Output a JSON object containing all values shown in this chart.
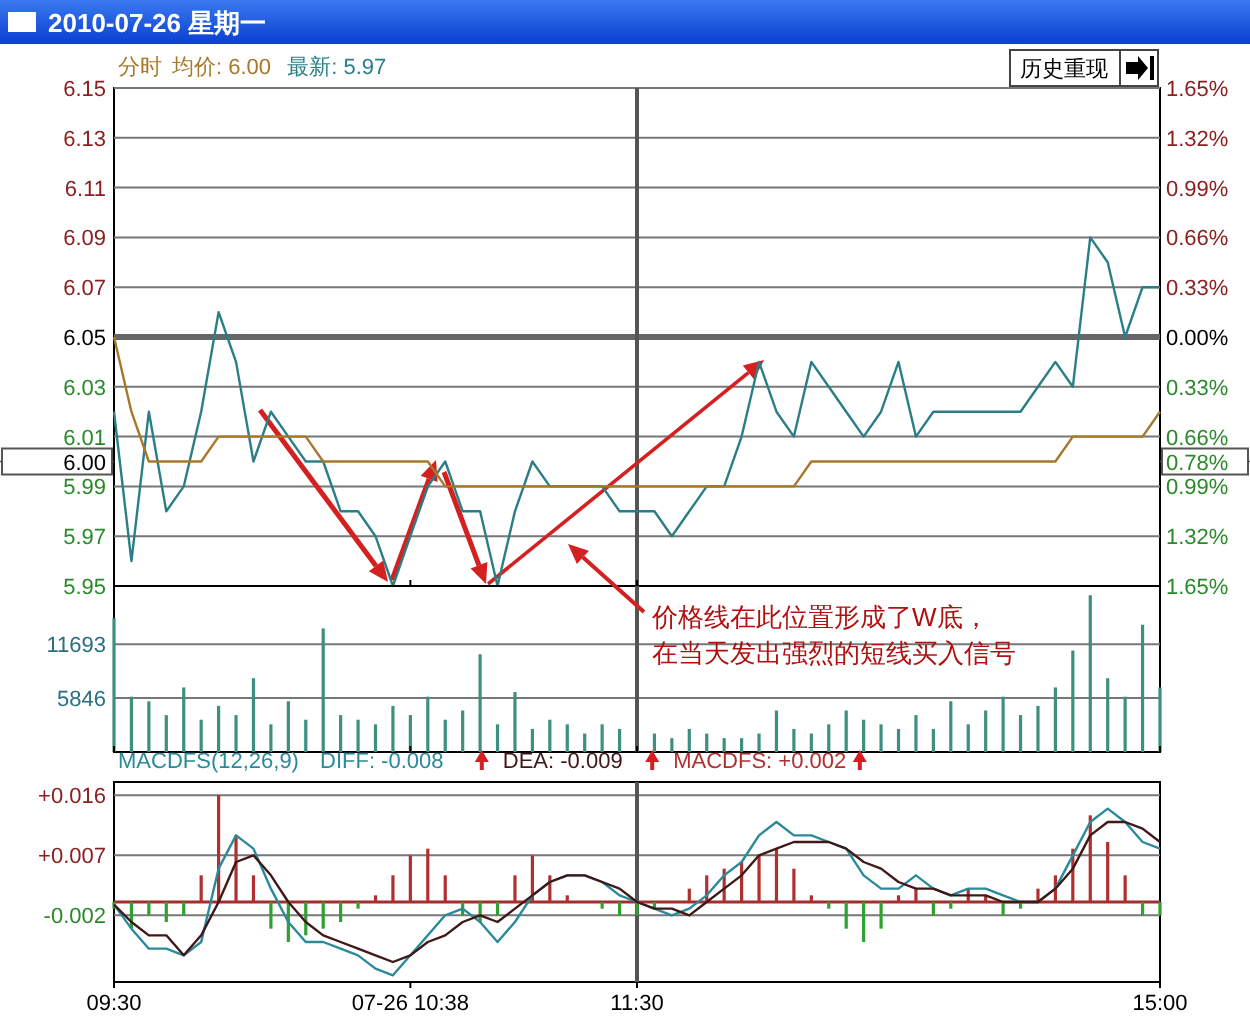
{
  "chart_data": [
    {
      "type": "line",
      "title": "2010-07-26 星期一",
      "subtitle": "分时",
      "legend": "top left",
      "grid": "y",
      "tick_labels": "y",
      "categories": [
        "09:30",
        null,
        null,
        null,
        null,
        null,
        null,
        null,
        null,
        null,
        null,
        null,
        null,
        null,
        null,
        null,
        null,
        "07-26 10:38",
        null,
        null,
        null,
        null,
        null,
        null,
        null,
        null,
        null,
        null,
        null,
        null,
        "11:30",
        null,
        null,
        null,
        null,
        null,
        null,
        null,
        null,
        null,
        null,
        null,
        null,
        null,
        null,
        null,
        null,
        null,
        null,
        null,
        null,
        null,
        null,
        null,
        null,
        null,
        null,
        null,
        null,
        null,
        "15:00"
      ],
      "ylim": [
        5.95,
        6.15
      ],
      "yticks": [
        6.15,
        6.13,
        6.11,
        6.09,
        6.07,
        6.05,
        6.03,
        6.01,
        5.99,
        5.97,
        5.95
      ],
      "y2lim": [
        -1.65,
        1.65
      ],
      "y2ticks": [
        {
          "value": 1.65,
          "label": "1.65%"
        },
        {
          "value": 1.32,
          "label": "1.32%"
        },
        {
          "value": 0.99,
          "label": "0.99%"
        },
        {
          "value": 0.66,
          "label": "0.66%"
        },
        {
          "value": 0.33,
          "label": "0.33%"
        },
        {
          "value": 0,
          "label": "0.00%"
        },
        {
          "value": -0.33,
          "label": "0.33%"
        },
        {
          "value": -0.66,
          "label": "0.66%"
        },
        {
          "value": -0.99,
          "label": "0.99%"
        },
        {
          "value": -1.32,
          "label": "1.32%"
        },
        {
          "value": -1.65,
          "label": "1.65%"
        }
      ],
      "ref_lines": [
        {
          "axis": "y",
          "value": 6.05,
          "color": "#666666"
        },
        {
          "axis": "x",
          "value": "11:30",
          "color": "#555555"
        },
        {
          "axis": "y",
          "value": 6.0,
          "label": "6.00",
          "color": "#555555"
        }
      ],
      "annotations": [
        "历史重现",
        "0.78%"
      ],
      "series": [
        {
          "name": "最新: 5.97",
          "color": "#2a7f86",
          "values": [
            6.02,
            5.96,
            6.02,
            5.98,
            5.99,
            6.02,
            6.06,
            6.04,
            6.0,
            6.02,
            6.01,
            6.0,
            6.0,
            5.98,
            5.98,
            5.97,
            5.95,
            5.97,
            5.99,
            6.0,
            5.98,
            5.98,
            5.95,
            5.98,
            6.0,
            5.99,
            5.99,
            5.99,
            5.99,
            5.98,
            5.98,
            5.98,
            5.97,
            5.98,
            5.99,
            5.99,
            6.01,
            6.04,
            6.02,
            6.01,
            6.04,
            6.03,
            6.02,
            6.01,
            6.02,
            6.04,
            6.01,
            6.02,
            6.02,
            6.02,
            6.02,
            6.02,
            6.02,
            6.03,
            6.04,
            6.03,
            6.09,
            6.08,
            6.05,
            6.07,
            6.07
          ]
        },
        {
          "name": "均价: 6.00",
          "color": "#a8782a",
          "values": [
            6.05,
            6.02,
            6.0,
            6.0,
            6.0,
            6.0,
            6.01,
            6.01,
            6.01,
            6.01,
            6.01,
            6.01,
            6.0,
            6.0,
            6.0,
            6.0,
            6.0,
            6.0,
            6.0,
            5.99,
            5.99,
            5.99,
            5.99,
            5.99,
            5.99,
            5.99,
            5.99,
            5.99,
            5.99,
            5.99,
            5.99,
            5.99,
            5.99,
            5.99,
            5.99,
            5.99,
            5.99,
            5.99,
            5.99,
            5.99,
            6.0,
            6.0,
            6.0,
            6.0,
            6.0,
            6.0,
            6.0,
            6.0,
            6.0,
            6.0,
            6.0,
            6.0,
            6.0,
            6.0,
            6.0,
            6.01,
            6.01,
            6.01,
            6.01,
            6.01,
            6.02
          ]
        }
      ]
    },
    {
      "type": "bar",
      "grid": "y",
      "tick_labels": "y",
      "categories": [
        "09:30",
        null,
        null,
        null,
        null,
        null,
        null,
        null,
        null,
        null,
        null,
        null,
        null,
        null,
        null,
        null,
        null,
        "07-26 10:38",
        null,
        null,
        null,
        null,
        null,
        null,
        null,
        null,
        null,
        null,
        null,
        null,
        "11:30",
        null,
        null,
        null,
        null,
        null,
        null,
        null,
        null,
        null,
        null,
        null,
        null,
        null,
        null,
        null,
        null,
        null,
        null,
        null,
        null,
        null,
        null,
        null,
        null,
        null,
        null,
        null,
        null,
        null,
        "15:00"
      ],
      "ylim": [
        0,
        18000
      ],
      "yticks": [
        5846,
        11693
      ],
      "ref_lines": [
        {
          "axis": "x",
          "value": "11:30",
          "color": "#555555"
        }
      ],
      "annotations": [
        "价格线在此位置形成了W底，",
        "在当天发出强烈的短线买入信号"
      ],
      "series": [
        {
          "color": "#3f8f7f",
          "values": [
            14500,
            6000,
            5500,
            4000,
            7000,
            3500,
            5000,
            4000,
            8000,
            3000,
            5500,
            3500,
            13400,
            4000,
            3500,
            3000,
            5000,
            4000,
            6000,
            3500,
            4500,
            10600,
            3000,
            6500,
            2500,
            3500,
            3000,
            2000,
            3000,
            2500,
            null,
            2000,
            1500,
            2500,
            2000,
            1500,
            1500,
            2000,
            4500,
            2500,
            2000,
            3000,
            4500,
            3500,
            3000,
            2500,
            4000,
            2500,
            5500,
            3000,
            4500,
            6000,
            4000,
            5000,
            7000,
            11000,
            17000,
            8000,
            6000,
            13800,
            7000
          ]
        }
      ]
    },
    {
      "type": "line",
      "title": "MACDFS(12,26,9)",
      "legend": "top",
      "grid": "y",
      "categories": [
        "09:30",
        null,
        null,
        null,
        null,
        null,
        null,
        null,
        null,
        null,
        null,
        null,
        null,
        null,
        null,
        null,
        null,
        "07-26 10:38",
        null,
        null,
        null,
        null,
        null,
        null,
        null,
        null,
        null,
        null,
        null,
        null,
        "11:30",
        null,
        null,
        null,
        null,
        null,
        null,
        null,
        null,
        null,
        null,
        null,
        null,
        null,
        null,
        null,
        null,
        null,
        null,
        null,
        null,
        null,
        null,
        null,
        null,
        null,
        null,
        null,
        null,
        null,
        "15:00"
      ],
      "ylim": [
        -0.012,
        0.018
      ],
      "yticks": [
        {
          "value": 0.016,
          "label": "+0.016"
        },
        {
          "value": 0.007,
          "label": "+0.007"
        },
        {
          "value": -0.002,
          "label": "-0.002"
        }
      ],
      "ref_lines": [
        {
          "axis": "y",
          "value": 0,
          "color": "#a03030"
        },
        {
          "axis": "x",
          "value": "11:30",
          "color": "#555555"
        }
      ],
      "series": [
        {
          "name": "MACDFS: +0.002",
          "type": "bar",
          "color": "#b03030",
          "values": [
            -0.001,
            -0.004,
            -0.002,
            -0.003,
            -0.002,
            0.004,
            0.016,
            0.01,
            0.004,
            -0.004,
            -0.006,
            -0.005,
            -0.004,
            -0.003,
            -0.001,
            0.001,
            0.004,
            0.007,
            0.008,
            0.004,
            -0.002,
            -0.003,
            -0.002,
            0.004,
            0.007,
            0.004,
            0.001,
            0.0,
            -0.001,
            -0.002,
            -0.002,
            -0.001,
            0.0,
            0.002,
            0.004,
            0.005,
            0.006,
            0.007,
            0.008,
            0.005,
            0.001,
            -0.001,
            -0.004,
            -0.006,
            -0.004,
            0.001,
            0.002,
            -0.002,
            -0.001,
            0.002,
            0.001,
            -0.002,
            -0.001,
            0.002,
            0.004,
            0.008,
            0.013,
            0.009,
            0.004,
            -0.002,
            -0.002
          ],
          "colors": [
            "#30a030",
            "#30a030",
            "#30a030",
            "#30a030",
            "#30a030",
            "#b03030",
            "#b03030",
            "#b03030",
            "#b03030",
            "#30a030",
            "#30a030",
            "#30a030",
            "#30a030",
            "#30a030",
            "#30a030",
            "#b03030",
            "#b03030",
            "#b03030",
            "#b03030",
            "#b03030",
            "#30a030",
            "#30a030",
            "#30a030",
            "#b03030",
            "#b03030",
            "#b03030",
            "#b03030",
            "#b03030",
            "#30a030",
            "#30a030",
            "#30a030",
            "#30a030",
            "#b03030",
            "#b03030",
            "#b03030",
            "#b03030",
            "#b03030",
            "#b03030",
            "#b03030",
            "#b03030",
            "#b03030",
            "#30a030",
            "#30a030",
            "#30a030",
            "#30a030",
            "#b03030",
            "#b03030",
            "#30a030",
            "#30a030",
            "#b03030",
            "#b03030",
            "#30a030",
            "#30a030",
            "#b03030",
            "#b03030",
            "#b03030",
            "#b03030",
            "#b03030",
            "#b03030",
            "#30a030",
            "#30a030"
          ]
        },
        {
          "name": "DIFF: -0.008",
          "color": "#2a8a9a",
          "values": [
            -0.0004,
            -0.004,
            -0.007,
            -0.007,
            -0.008,
            -0.006,
            0.005,
            0.01,
            0.008,
            0.002,
            -0.003,
            -0.006,
            -0.006,
            -0.007,
            -0.008,
            -0.01,
            -0.011,
            -0.008,
            -0.005,
            -0.002,
            -0.001,
            -0.003,
            -0.006,
            -0.003,
            0.001,
            0.003,
            0.004,
            0.004,
            0.003,
            0.001,
            0.0,
            -0.001,
            -0.002,
            -0.001,
            0.001,
            0.004,
            0.006,
            0.01,
            0.012,
            0.01,
            0.01,
            0.009,
            0.008,
            0.004,
            0.002,
            0.002,
            0.004,
            0.002,
            0.001,
            0.002,
            0.002,
            0.001,
            0.0,
            0.0,
            0.002,
            0.007,
            0.012,
            0.014,
            0.012,
            0.009,
            0.008
          ]
        },
        {
          "name": "DEA: -0.009",
          "color": "#401818",
          "values": [
            -0.0004,
            -0.003,
            -0.005,
            -0.005,
            -0.008,
            -0.005,
            0.0,
            0.006,
            0.007,
            0.004,
            0.0,
            -0.003,
            -0.005,
            -0.006,
            -0.007,
            -0.008,
            -0.009,
            -0.008,
            -0.006,
            -0.005,
            -0.003,
            -0.002,
            -0.003,
            -0.001,
            0.001,
            0.003,
            0.004,
            0.004,
            0.003,
            0.002,
            0.0,
            -0.001,
            -0.001,
            -0.002,
            0.0,
            0.002,
            0.004,
            0.007,
            0.008,
            0.009,
            0.009,
            0.009,
            0.008,
            0.006,
            0.005,
            0.003,
            0.002,
            0.002,
            0.001,
            0.001,
            0.001,
            0.0,
            0.0,
            0.0,
            0.002,
            0.005,
            0.01,
            0.012,
            0.012,
            0.011,
            0.009
          ]
        }
      ]
    }
  ]
}
